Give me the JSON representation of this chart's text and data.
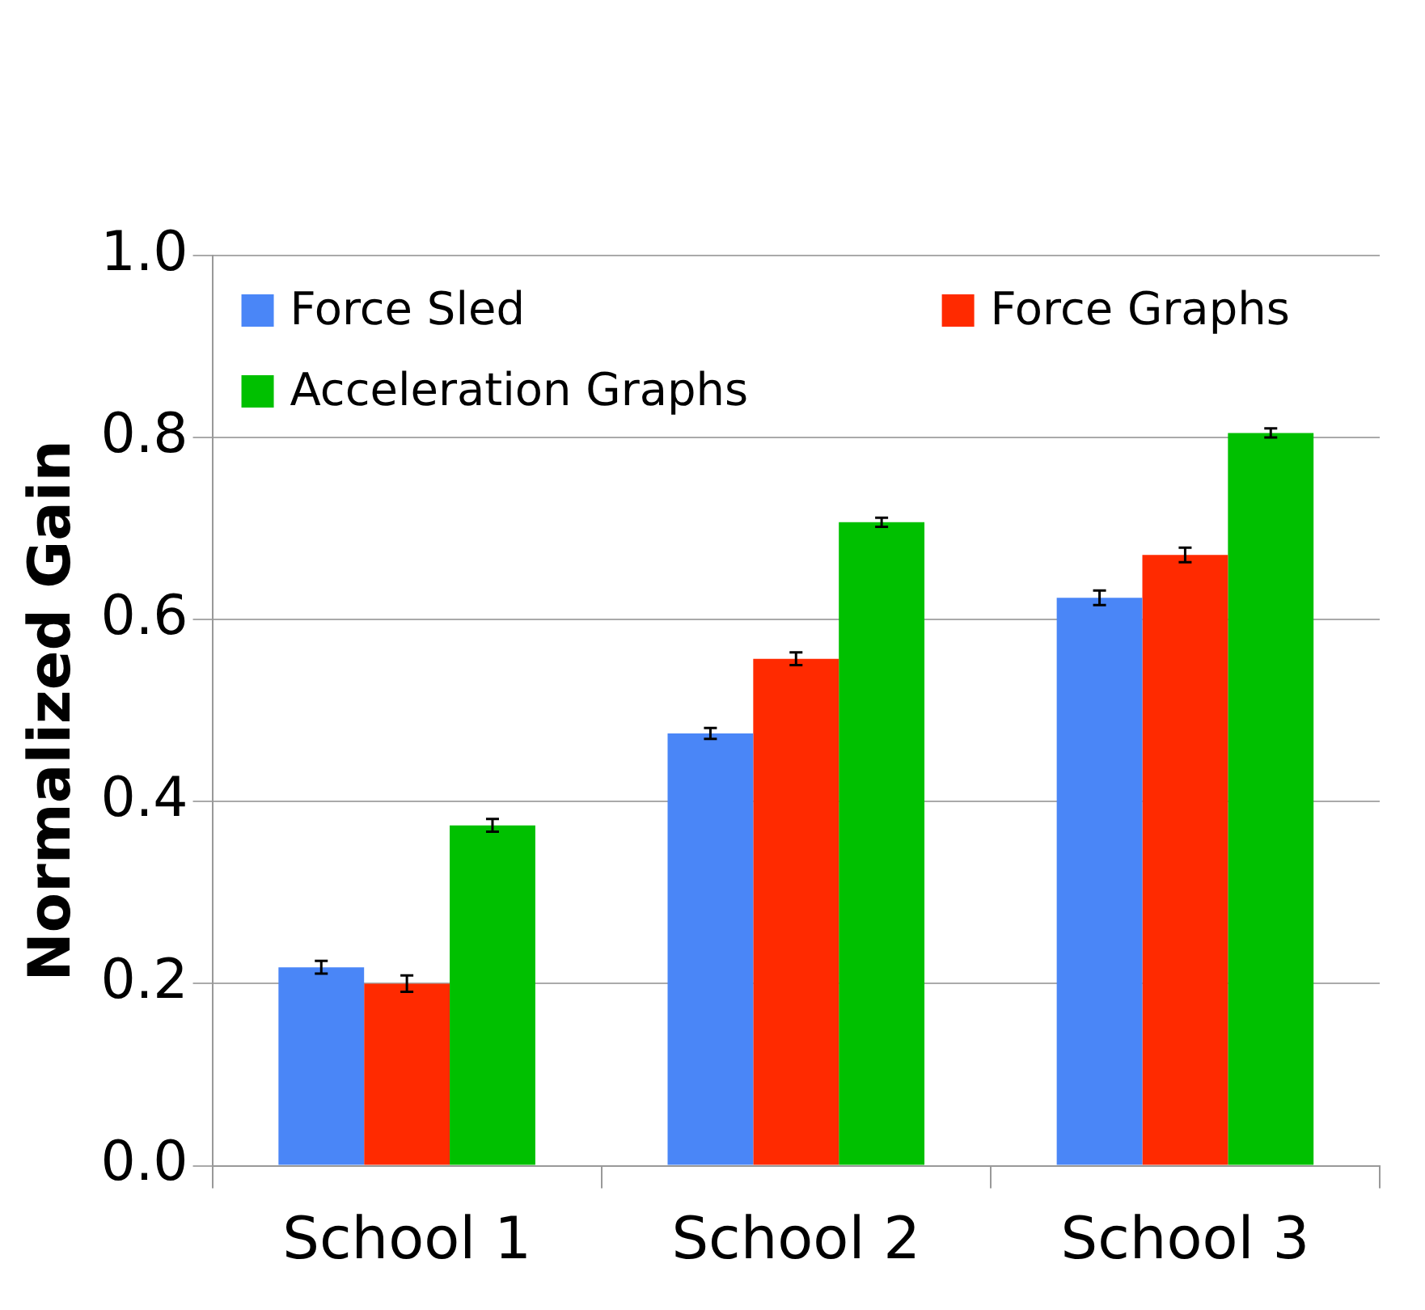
{
  "chart_data": {
    "type": "bar",
    "ylabel": "Normalized Gain",
    "categories": [
      "School 1",
      "School 2",
      "School 3"
    ],
    "series": [
      {
        "name": "Force Sled",
        "color": "#4a86f7",
        "values": [
          0.218,
          0.475,
          0.624
        ],
        "errors": [
          0.007,
          0.006,
          0.008
        ]
      },
      {
        "name": "Force Graphs",
        "color": "#ff2a00",
        "values": [
          0.2,
          0.557,
          0.671
        ],
        "errors": [
          0.009,
          0.007,
          0.008
        ]
      },
      {
        "name": "Acceleration Graphs",
        "color": "#00c000",
        "values": [
          0.374,
          0.707,
          0.805
        ],
        "errors": [
          0.007,
          0.005,
          0.005
        ]
      }
    ],
    "ylim": [
      0,
      1
    ],
    "yticks": [
      {
        "value": 0,
        "label": "0.0"
      },
      {
        "value": 0.2,
        "label": "0.2"
      },
      {
        "value": 0.4,
        "label": "0.4"
      },
      {
        "value": 0.6,
        "label": "0.6"
      },
      {
        "value": 0.8,
        "label": "0.8"
      },
      {
        "value": 1,
        "label": "1.0"
      }
    ],
    "grid": "y",
    "legend": "top left"
  }
}
